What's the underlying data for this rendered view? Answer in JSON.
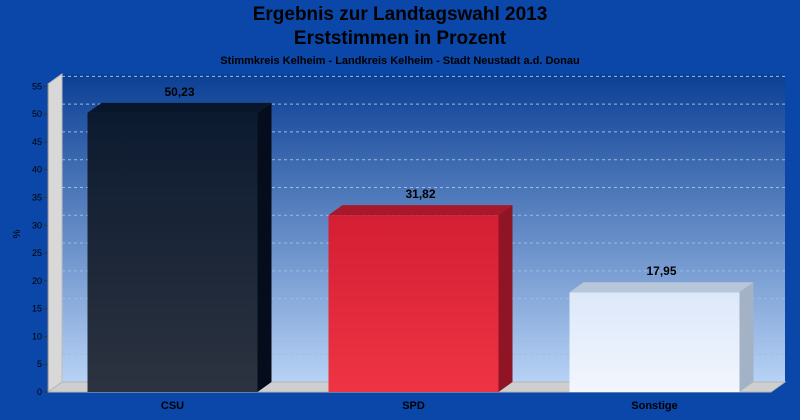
{
  "chart_data": {
    "type": "bar",
    "title": "Ergebnis zur Landtagswahl 2013",
    "subtitle": "Erststimmen in Prozent",
    "subsubtitle": "Stimmkreis Kelheim - Landkreis Kelheim - Stadt Neustadt a.d. Donau",
    "ylabel": "%",
    "xlabel": "",
    "ylim": [
      0,
      55
    ],
    "yticks": [
      "0",
      "5",
      "10",
      "15",
      "20",
      "25",
      "30",
      "35",
      "40",
      "45",
      "50",
      "55"
    ],
    "categories": [
      "CSU",
      "SPD",
      "Sonstige"
    ],
    "values": [
      50.23,
      31.82,
      17.95
    ],
    "value_labels": [
      "50,23",
      "31,82",
      "17,95"
    ],
    "colors": [
      "#1c2230",
      "#e0283a",
      "#e8effb"
    ],
    "grid": true,
    "legend": "none"
  }
}
